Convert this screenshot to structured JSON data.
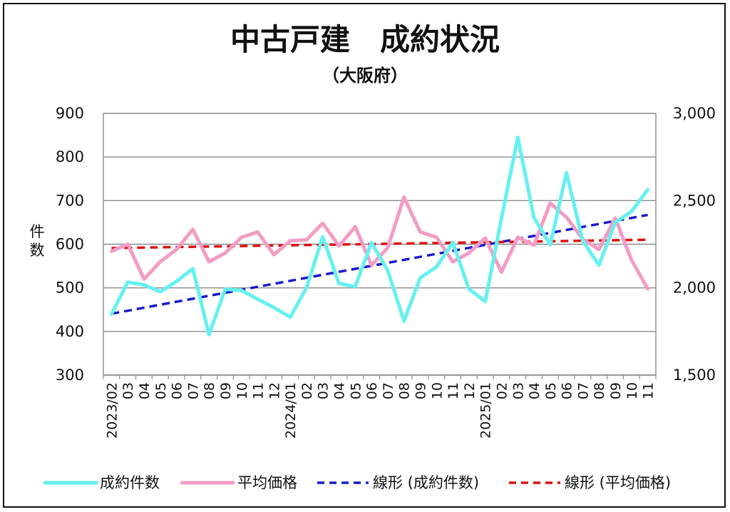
{
  "chart_data": {
    "type": "line",
    "title": "中古戸建　成約状況",
    "subtitle": "（大阪府）",
    "ylabel": "件数",
    "y_left": {
      "lim": [
        300,
        900
      ],
      "ticks": [
        "300",
        "400",
        "500",
        "600",
        "700",
        "800",
        "900"
      ]
    },
    "y_right": {
      "lim": [
        1500,
        3000
      ],
      "ticks": [
        "1,500",
        "2,000",
        "2,500",
        "3,000"
      ]
    },
    "grid": true,
    "legend_position": "bottom",
    "categories": [
      "2023/02",
      "03",
      "04",
      "05",
      "06",
      "07",
      "08",
      "09",
      "10",
      "11",
      "12",
      "2024/01",
      "02",
      "03",
      "04",
      "05",
      "06",
      "07",
      "08",
      "09",
      "10",
      "11",
      "12",
      "2025/01",
      "02",
      "03",
      "04",
      "05",
      "06",
      "07",
      "08",
      "09",
      "10",
      "11"
    ],
    "series": [
      {
        "name": "成約件数",
        "axis": "left",
        "color": "#66f0f0",
        "values": [
          440,
          513,
          507,
          491,
          515,
          544,
          393,
          497,
          494,
          474,
          455,
          433,
          500,
          617,
          510,
          503,
          604,
          540,
          424,
          523,
          548,
          604,
          497,
          469,
          660,
          845,
          661,
          599,
          764,
          608,
          552,
          650,
          675,
          725
        ]
      },
      {
        "name": "平均価格",
        "axis": "right",
        "color": "#f29cc4",
        "values": [
          2210,
          2250,
          2050,
          2150,
          2220,
          2335,
          2150,
          2200,
          2290,
          2320,
          2190,
          2270,
          2275,
          2370,
          2240,
          2350,
          2130,
          2230,
          2520,
          2320,
          2290,
          2150,
          2200,
          2285,
          2090,
          2290,
          2245,
          2485,
          2405,
          2280,
          2220,
          2400,
          2160,
          1995
        ]
      },
      {
        "name": "線形 (成約件数)",
        "axis": "left",
        "color": "#1a1acc",
        "dashed": true,
        "trend_of": 0
      },
      {
        "name": "線形 (平均価格)",
        "axis": "right",
        "color": "#dd1111",
        "dashed": true,
        "trend_of": 1
      }
    ]
  },
  "legend": {
    "item1": "成約件数",
    "item2": "平均価格",
    "item3": "線形 (成約件数)",
    "item4": "線形 (平均価格)"
  }
}
